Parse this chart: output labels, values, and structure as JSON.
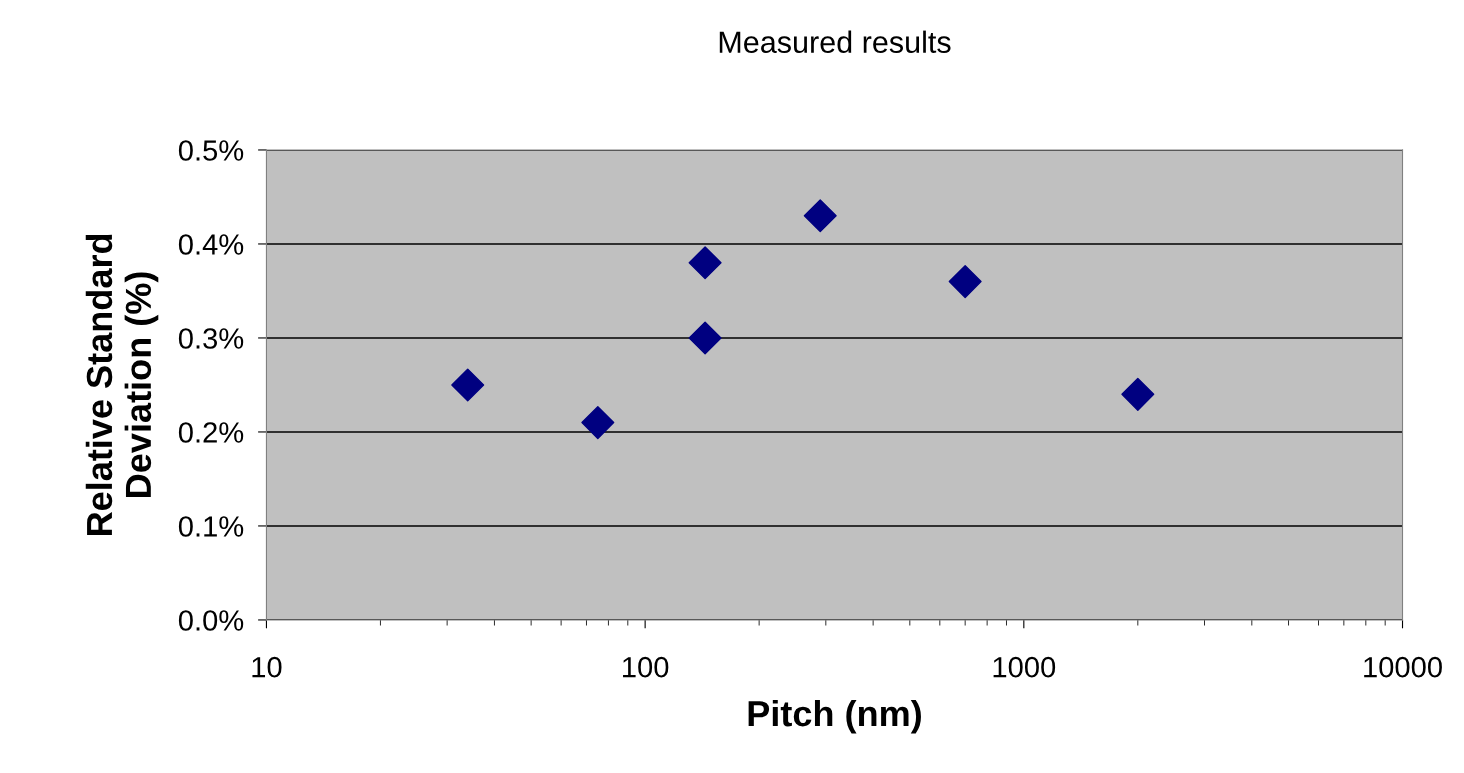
{
  "chart_data": {
    "type": "scatter",
    "title": "Measured results",
    "xlabel": "Pitch (nm)",
    "ylabel": "Relative Standard\nDeviation (%)",
    "series": [
      {
        "color": "#000080",
        "x": [
          34,
          75,
          144,
          144,
          290,
          700,
          2000
        ],
        "values": [
          0.25,
          0.21,
          0.38,
          0.3,
          0.43,
          0.36,
          0.24
        ]
      }
    ],
    "log": "x",
    "xlim": [
      10,
      10000
    ],
    "xticks": [
      10,
      100,
      1000,
      10000
    ],
    "ylim": [
      0,
      0.5
    ],
    "yticks": [
      {
        "value": 0,
        "label": "0.0%"
      },
      {
        "value": 0.1,
        "label": "0.1%"
      },
      {
        "value": 0.2,
        "label": "0.2%"
      },
      {
        "value": 0.3,
        "label": "0.3%"
      },
      {
        "value": 0.4,
        "label": "0.4%"
      },
      {
        "value": 0.5,
        "label": "0.5%"
      }
    ],
    "grid": "y",
    "marker": "diamond",
    "legend": false
  }
}
